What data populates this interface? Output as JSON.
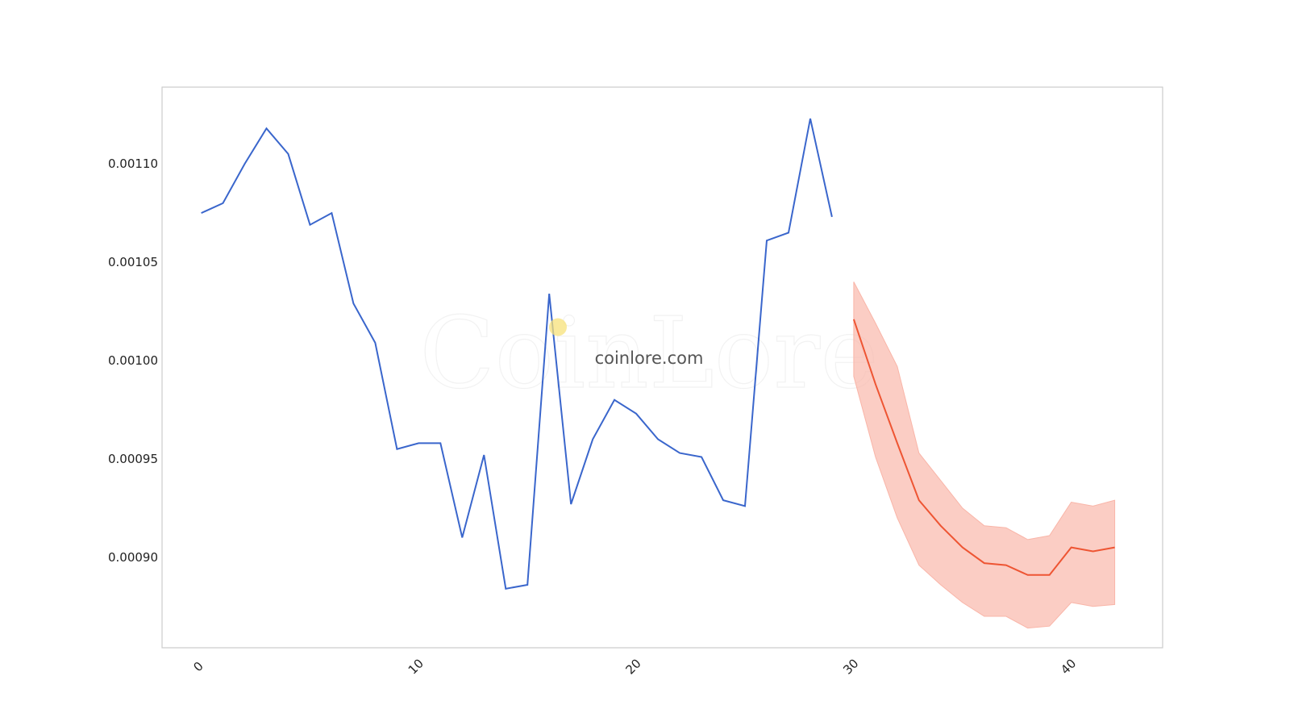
{
  "watermark": {
    "logo_text": "CoinLore",
    "site_text": "coinlore.com"
  },
  "colors": {
    "history_line": "#3a66cc",
    "forecast_line": "#ee5533",
    "forecast_band": "#f9b5a8",
    "frame": "#cccccc",
    "dot": "#f7e27a"
  },
  "chart_data": {
    "type": "line",
    "title": "",
    "xlabel": "",
    "ylabel": "",
    "xlim": [
      -1.8,
      44.2
    ],
    "ylim": [
      0.000854,
      0.001139
    ],
    "grid": false,
    "legend": "none",
    "xticks": [
      0,
      10,
      20,
      30,
      40
    ],
    "xtick_labels": [
      "0",
      "10",
      "20",
      "30",
      "40"
    ],
    "yticks": [
      0.0009,
      0.00095,
      0.001,
      0.00105,
      0.0011
    ],
    "ytick_labels": [
      "0.00090",
      "0.00095",
      "0.00100",
      "0.00105",
      "0.00110"
    ],
    "series": [
      {
        "role": "history",
        "x": [
          0,
          1,
          2,
          3,
          4,
          5,
          6,
          7,
          8,
          9,
          10,
          11,
          12,
          13,
          14,
          15,
          16,
          17,
          18,
          19,
          20,
          21,
          22,
          23,
          24,
          25,
          26,
          27,
          28,
          29
        ],
        "y": [
          0.001075,
          0.00108,
          0.0011,
          0.001118,
          0.001105,
          0.001069,
          0.001075,
          0.001029,
          0.001009,
          0.000955,
          0.000958,
          0.000958,
          0.00091,
          0.000952,
          0.000884,
          0.000886,
          0.001034,
          0.000927,
          0.00096,
          0.00098,
          0.000973,
          0.00096,
          0.000953,
          0.000951,
          0.000929,
          0.000926,
          0.001061,
          0.001065,
          0.001123,
          0.001073
        ]
      },
      {
        "role": "forecast",
        "x": [
          30,
          31,
          32,
          33,
          34,
          35,
          36,
          37,
          38,
          39,
          40,
          41,
          42
        ],
        "y": [
          0.001021,
          0.000988,
          0.000958,
          0.000929,
          0.000916,
          0.000905,
          0.000897,
          0.000896,
          0.000891,
          0.000891,
          0.000905,
          0.000903,
          0.000905
        ],
        "lower": [
          0.000992,
          0.000951,
          0.00092,
          0.000896,
          0.000886,
          0.000877,
          0.00087,
          0.00087,
          0.000864,
          0.000865,
          0.000877,
          0.000875,
          0.000876
        ],
        "upper": [
          0.00104,
          0.001019,
          0.000997,
          0.000953,
          0.000939,
          0.000925,
          0.000916,
          0.000915,
          0.000909,
          0.000911,
          0.000928,
          0.000926,
          0.000929
        ]
      }
    ],
    "marker": {
      "x": 16.4,
      "y": 0.001017
    }
  }
}
